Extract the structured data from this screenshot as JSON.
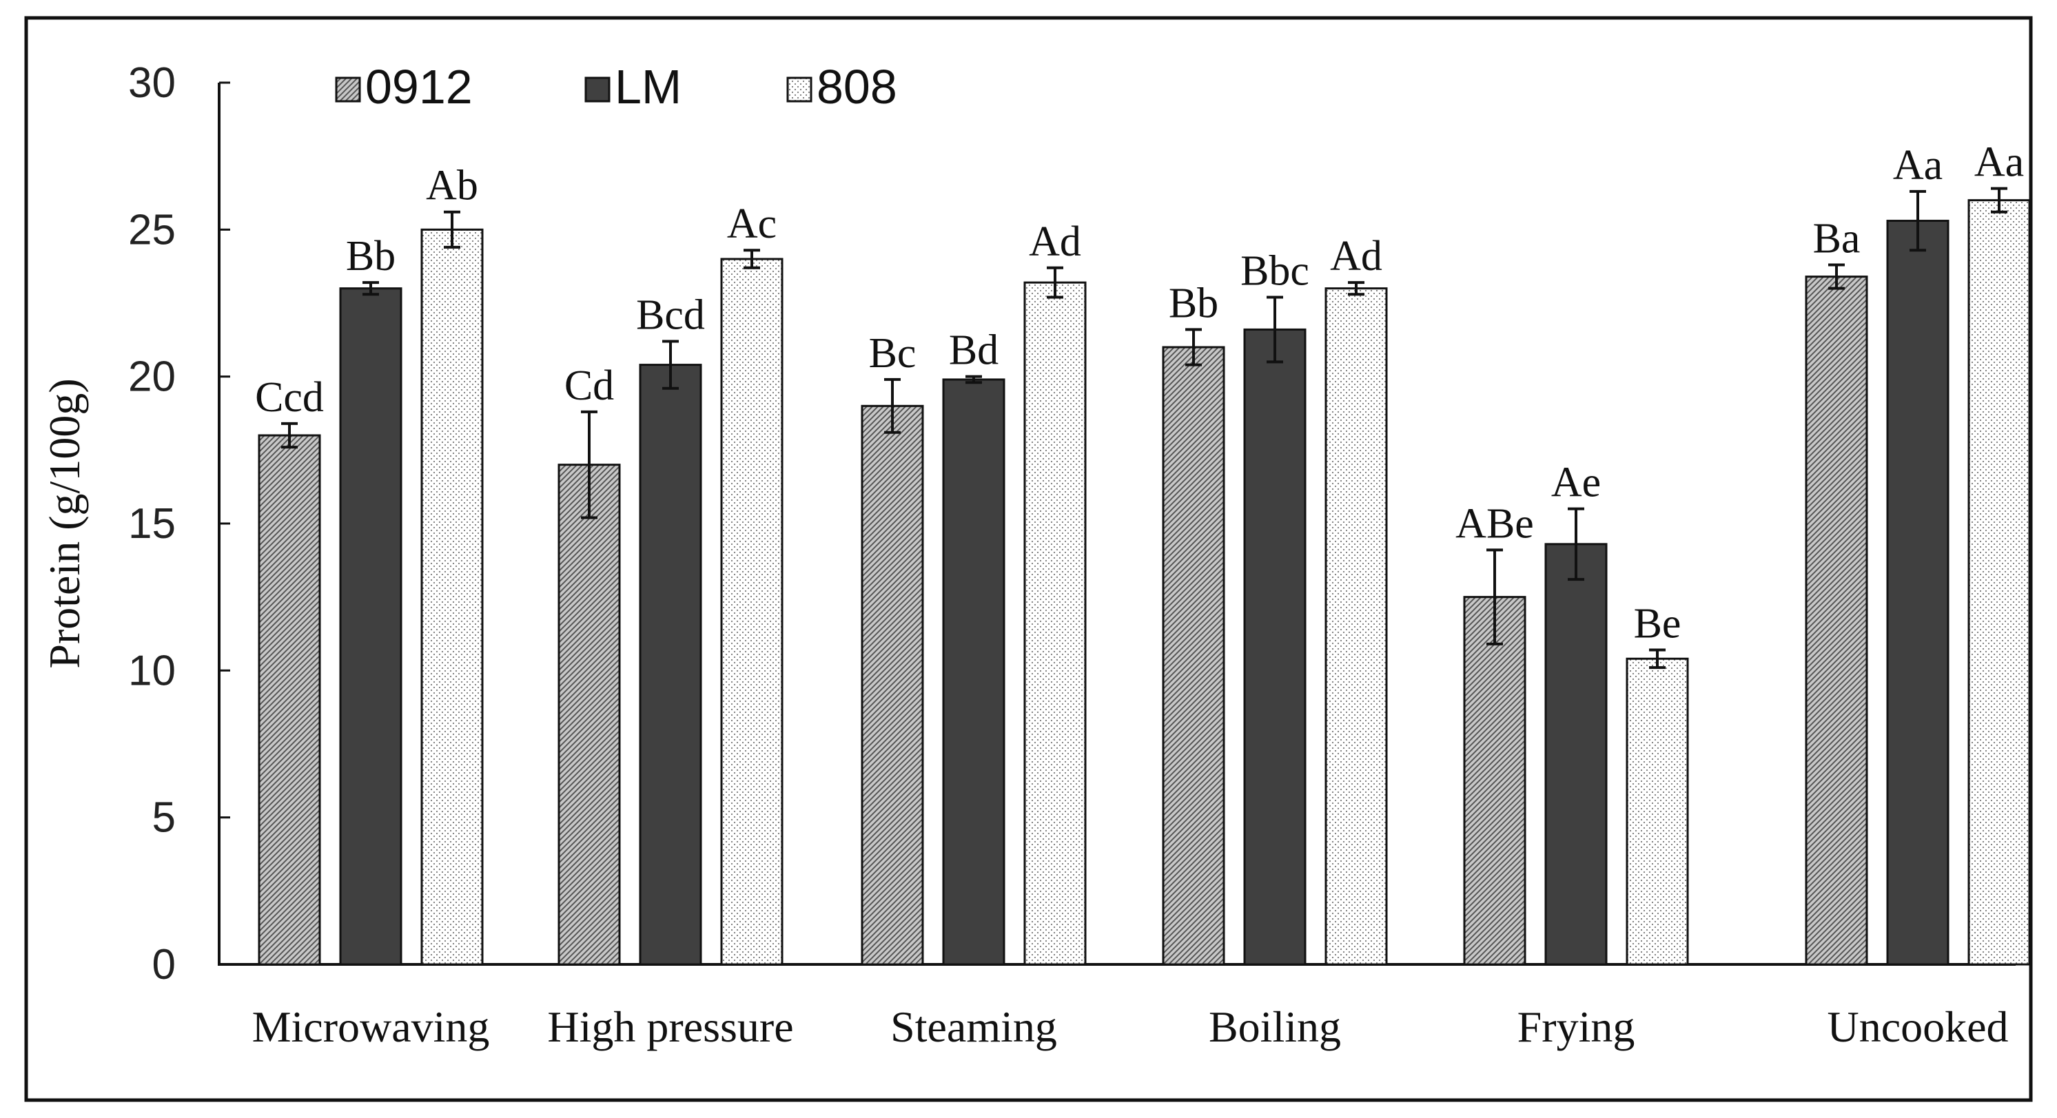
{
  "chart_data": {
    "type": "bar",
    "ylabel": "Protein (g/100g)",
    "xlabel": "",
    "ylim": [
      0,
      30
    ],
    "yticks": [
      0,
      5,
      10,
      15,
      20,
      25,
      30
    ],
    "categories": [
      "Microwaving",
      "High pressure",
      "Steaming",
      "Boiling",
      "Frying",
      "Uncooked"
    ],
    "series": [
      {
        "name": "0912",
        "pattern": "diagonal-hatch",
        "color": "#a0a0a0",
        "values": [
          18.0,
          17.0,
          19.0,
          21.0,
          12.5,
          23.4
        ],
        "errors": [
          0.4,
          1.8,
          0.9,
          0.6,
          1.6,
          0.4
        ],
        "labels": [
          "Ccd",
          "Cd",
          "Bc",
          "Bb",
          "ABe",
          "Ba"
        ]
      },
      {
        "name": "LM",
        "pattern": "solid",
        "color": "#404040",
        "values": [
          23.0,
          20.4,
          19.9,
          21.6,
          14.3,
          25.3
        ],
        "errors": [
          0.2,
          0.8,
          0.1,
          1.1,
          1.2,
          1.0
        ],
        "labels": [
          "Bb",
          "Bcd",
          "Bd",
          "Bbc",
          "Ae",
          "Aa"
        ]
      },
      {
        "name": "808",
        "pattern": "dotted",
        "color": "#ffffff",
        "values": [
          25.0,
          24.0,
          23.2,
          23.0,
          10.4,
          26.0
        ],
        "errors": [
          0.6,
          0.3,
          0.5,
          0.2,
          0.3,
          0.4
        ],
        "labels": [
          "Ab",
          "Ac",
          "Ad",
          "Ad",
          "Be",
          "Aa"
        ]
      }
    ],
    "legend_position": "top-left"
  }
}
